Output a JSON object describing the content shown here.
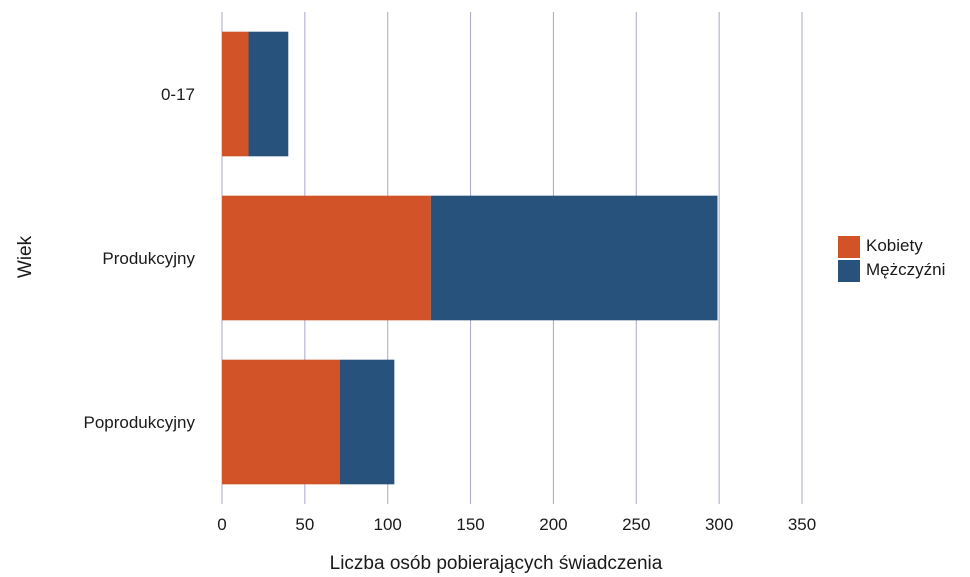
{
  "chart_data": {
    "type": "bar",
    "orientation": "horizontal",
    "stacked": true,
    "categories": [
      "0-17",
      "Produkcyjny",
      "Poprodukcyjny"
    ],
    "series": [
      {
        "name": "Kobiety",
        "values": [
          16,
          126,
          71
        ],
        "color": "#d25328"
      },
      {
        "name": "Mężczyźni",
        "values": [
          24,
          173,
          33
        ],
        "color": "#27527c"
      }
    ],
    "xlabel": "Liczba osób pobierających świadczenia",
    "ylabel": "Wiek",
    "xlim": [
      0,
      350
    ],
    "xticks": [
      0,
      50,
      100,
      150,
      200,
      250,
      300,
      350
    ],
    "grid": "vertical",
    "legend_position": "right"
  }
}
